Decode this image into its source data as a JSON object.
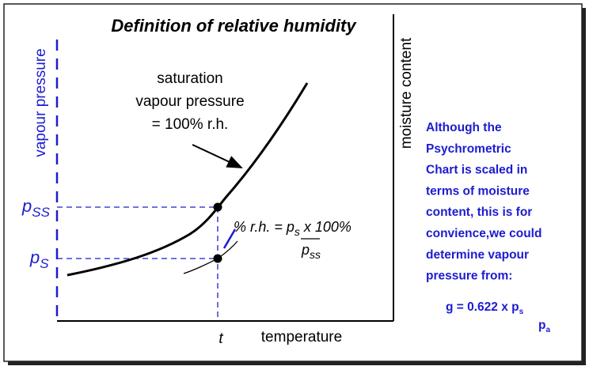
{
  "title": "Definition of relative humidity",
  "y_axis_label": "vapour pressure",
  "y2_axis_label": "moisture content",
  "x_axis_label": "temperature",
  "x_marker": "t",
  "curve_label": [
    "saturation",
    "vapour pressure",
    "= 100% r.h."
  ],
  "levels": [
    {
      "symbol": "p",
      "subscript": "SS"
    },
    {
      "symbol": "p",
      "subscript": "S"
    }
  ],
  "formula": {
    "lead": "% r.h. = ",
    "numerator": {
      "symbol": "p",
      "subscript": "s"
    },
    "tail": " x 100%",
    "denominator": {
      "symbol": "p",
      "subscript": "ss"
    }
  },
  "note": {
    "lines": [
      "Although the",
      "Psychrometric",
      "Chart is scaled in",
      "terms of moisture",
      "content, this is for",
      "convience,we could",
      "determine vapour",
      "pressure from:"
    ],
    "equation": {
      "lead": "g = 0.622 x p",
      "subscript": "s"
    },
    "denominator": {
      "symbol": "p",
      "subscript": "a"
    }
  }
}
